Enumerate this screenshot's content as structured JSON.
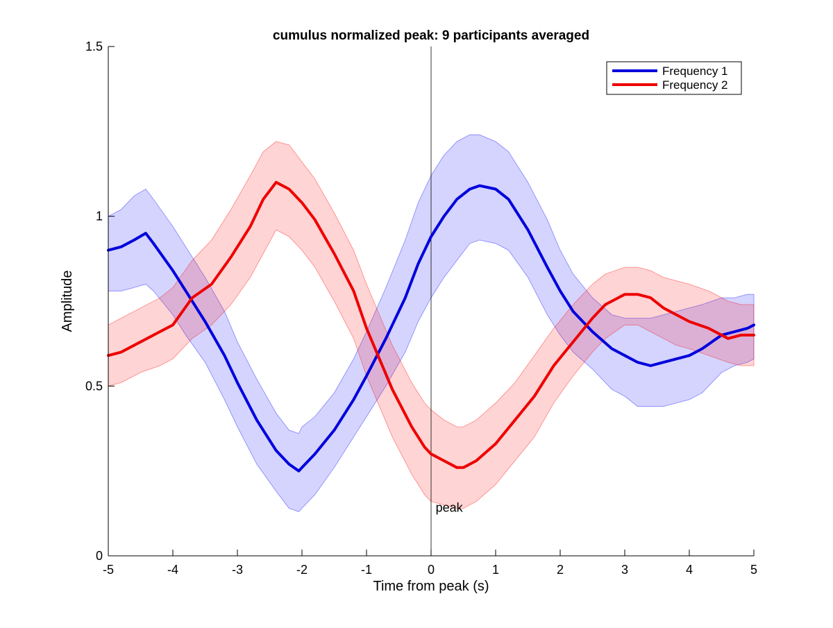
{
  "chart_data": {
    "type": "line",
    "title": "cumulus normalized peak: 9 participants averaged",
    "xlabel": "Time from peak (s)",
    "ylabel": "Amplitude",
    "xlim": [
      -5,
      5
    ],
    "ylim": [
      0,
      1.5
    ],
    "xticks": [
      -5,
      -4,
      -3,
      -2,
      -1,
      0,
      1,
      2,
      3,
      4,
      5
    ],
    "yticks": [
      0,
      0.5,
      1,
      1.5
    ],
    "ytick_labels": [
      "0",
      "0.5",
      "1",
      "1.5"
    ],
    "grid": false,
    "legend_position": "top-right",
    "annotation": {
      "text": "peak",
      "x": 0.05,
      "y": 0.14
    },
    "reference_line": {
      "x": 0
    },
    "series": [
      {
        "name": "Frequency 1",
        "color": "#0000dd",
        "band_color": "#0000ff",
        "x": [
          -5,
          -4.8,
          -4.6,
          -4.42,
          -4.3,
          -4,
          -3.8,
          -3.5,
          -3.2,
          -3,
          -2.7,
          -2.4,
          -2.2,
          -2.05,
          -2,
          -1.8,
          -1.5,
          -1.2,
          -1,
          -0.7,
          -0.4,
          -0.2,
          0,
          0.2,
          0.4,
          0.6,
          0.75,
          1,
          1.2,
          1.5,
          1.8,
          2,
          2.2,
          2.5,
          2.8,
          3,
          3.2,
          3.4,
          3.6,
          3.8,
          4,
          4.2,
          4.5,
          4.7,
          4.9,
          5
        ],
        "mean": [
          0.9,
          0.91,
          0.93,
          0.95,
          0.92,
          0.84,
          0.78,
          0.69,
          0.59,
          0.51,
          0.4,
          0.31,
          0.27,
          0.25,
          0.26,
          0.3,
          0.37,
          0.46,
          0.53,
          0.64,
          0.76,
          0.86,
          0.94,
          1.0,
          1.05,
          1.08,
          1.09,
          1.08,
          1.05,
          0.96,
          0.85,
          0.78,
          0.72,
          0.66,
          0.61,
          0.59,
          0.57,
          0.56,
          0.57,
          0.58,
          0.59,
          0.61,
          0.65,
          0.66,
          0.67,
          0.68
        ],
        "upper": [
          1.0,
          1.02,
          1.06,
          1.08,
          1.05,
          0.97,
          0.91,
          0.82,
          0.72,
          0.63,
          0.52,
          0.42,
          0.37,
          0.36,
          0.38,
          0.41,
          0.48,
          0.58,
          0.66,
          0.79,
          0.93,
          1.04,
          1.12,
          1.18,
          1.22,
          1.24,
          1.24,
          1.22,
          1.19,
          1.1,
          0.99,
          0.9,
          0.83,
          0.76,
          0.71,
          0.7,
          0.7,
          0.7,
          0.71,
          0.72,
          0.73,
          0.74,
          0.76,
          0.76,
          0.77,
          0.77
        ],
        "lower": [
          0.78,
          0.78,
          0.79,
          0.8,
          0.78,
          0.71,
          0.65,
          0.57,
          0.46,
          0.38,
          0.27,
          0.19,
          0.14,
          0.13,
          0.14,
          0.18,
          0.26,
          0.35,
          0.41,
          0.5,
          0.6,
          0.69,
          0.76,
          0.82,
          0.87,
          0.92,
          0.93,
          0.92,
          0.9,
          0.82,
          0.71,
          0.65,
          0.6,
          0.55,
          0.49,
          0.47,
          0.44,
          0.44,
          0.44,
          0.45,
          0.46,
          0.48,
          0.54,
          0.56,
          0.57,
          0.58
        ]
      },
      {
        "name": "Frequency 2",
        "color": "#ee0000",
        "band_color": "#ff0000",
        "x": [
          -5,
          -4.8,
          -4.5,
          -4.2,
          -4,
          -3.7,
          -3.4,
          -3.1,
          -2.8,
          -2.6,
          -2.4,
          -2.2,
          -2,
          -1.8,
          -1.5,
          -1.2,
          -1,
          -0.8,
          -0.6,
          -0.3,
          -0.1,
          0,
          0.2,
          0.4,
          0.5,
          0.7,
          1,
          1.3,
          1.6,
          1.9,
          2.2,
          2.5,
          2.7,
          3,
          3.2,
          3.4,
          3.6,
          3.8,
          4,
          4.3,
          4.6,
          4.8,
          5
        ],
        "mean": [
          0.59,
          0.6,
          0.63,
          0.66,
          0.68,
          0.76,
          0.8,
          0.88,
          0.97,
          1.05,
          1.1,
          1.08,
          1.04,
          0.99,
          0.89,
          0.78,
          0.67,
          0.58,
          0.49,
          0.38,
          0.32,
          0.3,
          0.28,
          0.26,
          0.26,
          0.28,
          0.33,
          0.4,
          0.47,
          0.56,
          0.63,
          0.7,
          0.74,
          0.77,
          0.77,
          0.76,
          0.73,
          0.71,
          0.69,
          0.67,
          0.64,
          0.65,
          0.65
        ],
        "upper": [
          0.68,
          0.7,
          0.73,
          0.76,
          0.79,
          0.87,
          0.93,
          1.02,
          1.12,
          1.19,
          1.22,
          1.21,
          1.16,
          1.11,
          1.01,
          0.9,
          0.8,
          0.71,
          0.62,
          0.51,
          0.45,
          0.43,
          0.4,
          0.38,
          0.38,
          0.4,
          0.45,
          0.51,
          0.59,
          0.67,
          0.74,
          0.8,
          0.83,
          0.85,
          0.85,
          0.84,
          0.82,
          0.81,
          0.8,
          0.78,
          0.75,
          0.74,
          0.74
        ],
        "lower": [
          0.5,
          0.51,
          0.54,
          0.56,
          0.58,
          0.64,
          0.68,
          0.74,
          0.82,
          0.89,
          0.96,
          0.94,
          0.9,
          0.85,
          0.75,
          0.64,
          0.53,
          0.44,
          0.35,
          0.24,
          0.18,
          0.16,
          0.15,
          0.14,
          0.14,
          0.16,
          0.21,
          0.28,
          0.35,
          0.45,
          0.53,
          0.6,
          0.64,
          0.68,
          0.68,
          0.66,
          0.64,
          0.62,
          0.61,
          0.59,
          0.57,
          0.56,
          0.56
        ]
      }
    ]
  }
}
